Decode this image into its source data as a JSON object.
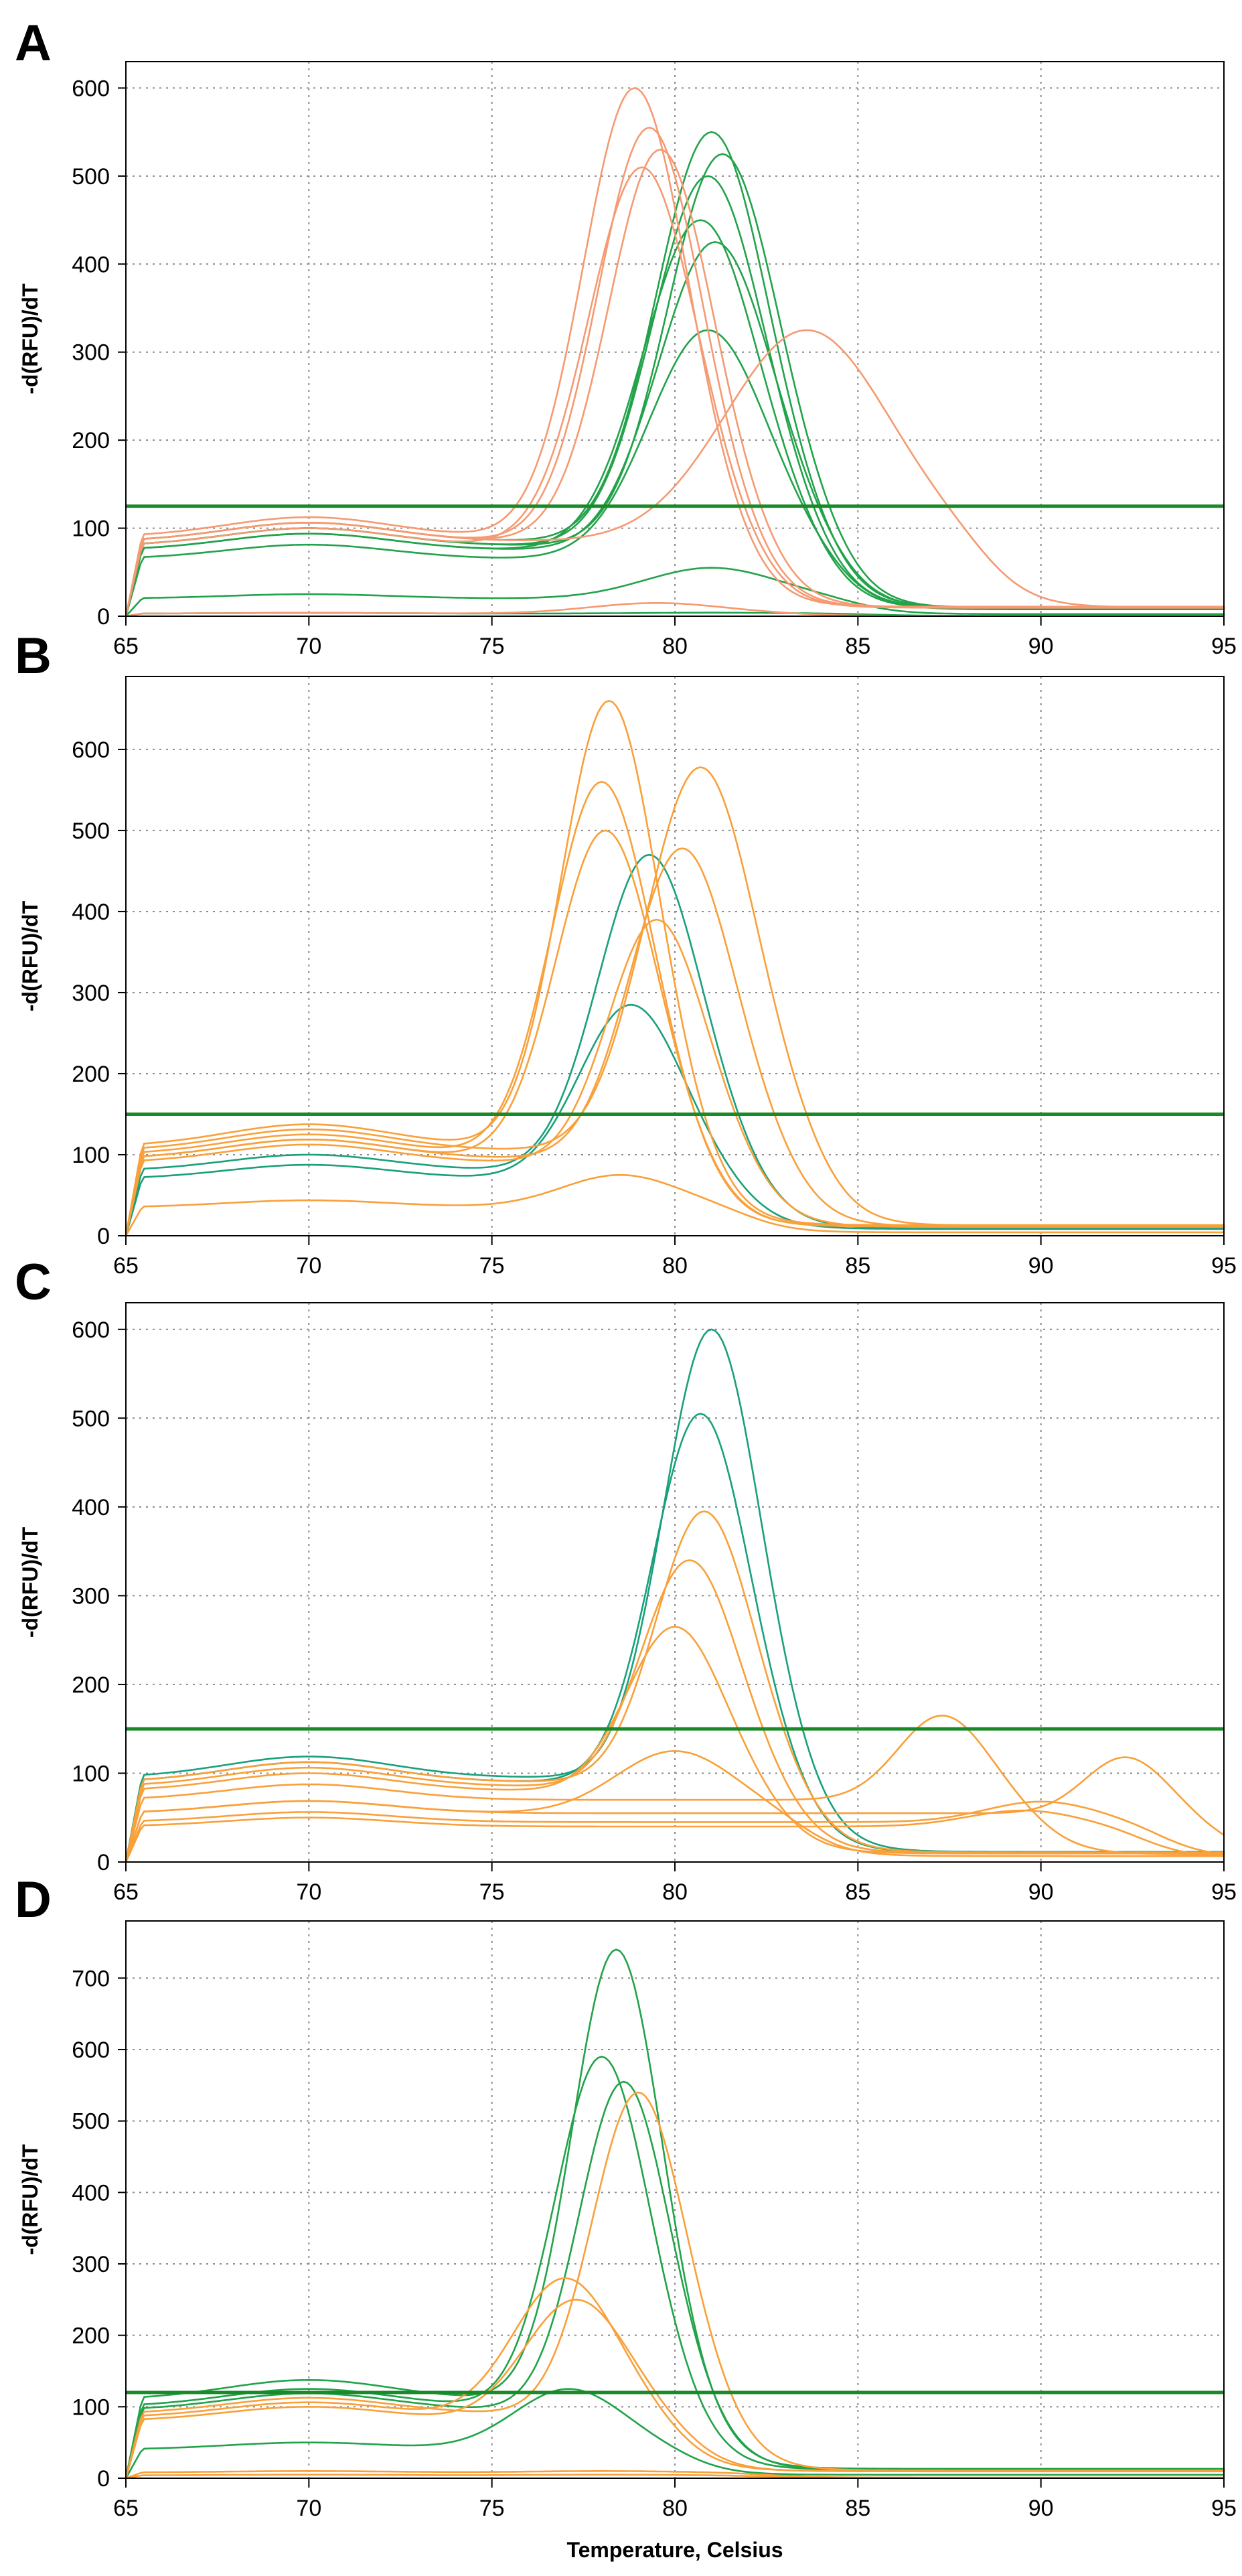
{
  "chart_data": [
    {
      "panel": "A",
      "type": "line",
      "xlabel": "",
      "ylabel": "-d(RFU)/dT",
      "xlim": [
        65,
        95
      ],
      "ylim": [
        0,
        630
      ],
      "xticks": [
        65,
        70,
        75,
        80,
        85,
        90,
        95
      ],
      "yticks": [
        0,
        100,
        200,
        300,
        400,
        500,
        600
      ],
      "threshold": 125,
      "threshold_color": "#1a8a28",
      "colors": {
        "green": "#22a34a",
        "orange": "#f59a72"
      },
      "series": [
        {
          "name": "green-1",
          "color": "green",
          "base": 85,
          "peak_x": 81.0,
          "peak_y": 550,
          "width": 1.5
        },
        {
          "name": "green-2",
          "color": "green",
          "base": 80,
          "peak_x": 81.3,
          "peak_y": 525,
          "width": 1.5
        },
        {
          "name": "green-3",
          "color": "green",
          "base": 80,
          "peak_x": 80.9,
          "peak_y": 500,
          "width": 1.5
        },
        {
          "name": "green-4",
          "color": "green",
          "base": 75,
          "peak_x": 80.7,
          "peak_y": 450,
          "width": 1.55
        },
        {
          "name": "green-5",
          "color": "green",
          "base": 75,
          "peak_x": 81.1,
          "peak_y": 425,
          "width": 1.55
        },
        {
          "name": "green-6",
          "color": "green",
          "base": 65,
          "peak_x": 80.9,
          "peak_y": 325,
          "width": 1.6
        },
        {
          "name": "green-7",
          "color": "green",
          "base": 20,
          "peak_x": 81.0,
          "peak_y": 55,
          "width": 1.8
        },
        {
          "name": "green-8",
          "color": "green",
          "base": 3,
          "peak_x": 81.0,
          "peak_y": 4,
          "width": 2.0
        },
        {
          "name": "orange-1",
          "color": "orange",
          "base": 90,
          "peak_x": 78.9,
          "peak_y": 600,
          "width": 1.4
        },
        {
          "name": "orange-2",
          "color": "orange",
          "base": 85,
          "peak_x": 79.3,
          "peak_y": 555,
          "width": 1.4
        },
        {
          "name": "orange-3",
          "color": "orange",
          "base": 85,
          "peak_x": 79.6,
          "peak_y": 530,
          "width": 1.4
        },
        {
          "name": "orange-4",
          "color": "orange",
          "base": 80,
          "peak_x": 79.1,
          "peak_y": 510,
          "width": 1.45
        },
        {
          "name": "orange-5",
          "color": "orange",
          "base": 85,
          "peak_x": 83.6,
          "peak_y": 325,
          "width": 2.2
        },
        {
          "name": "orange-6",
          "color": "orange",
          "base": 3,
          "peak_x": 79.5,
          "peak_y": 15,
          "width": 1.8
        }
      ]
    },
    {
      "panel": "B",
      "type": "line",
      "xlabel": "",
      "ylabel": "-d(RFU)/dT",
      "xlim": [
        65,
        95
      ],
      "ylim": [
        0,
        690
      ],
      "xticks": [
        65,
        70,
        75,
        80,
        85,
        90,
        95
      ],
      "yticks": [
        0,
        100,
        200,
        300,
        400,
        500,
        600
      ],
      "threshold": 150,
      "threshold_color": "#1a8a28",
      "colors": {
        "green": "#1aa07c",
        "orange": "#f9a03a"
      },
      "series": [
        {
          "name": "green-1",
          "color": "green",
          "base": 80,
          "peak_x": 79.3,
          "peak_y": 470,
          "width": 1.4
        },
        {
          "name": "green-2",
          "color": "green",
          "base": 70,
          "peak_x": 78.8,
          "peak_y": 285,
          "width": 1.4
        },
        {
          "name": "orange-1",
          "color": "orange",
          "base": 110,
          "peak_x": 78.2,
          "peak_y": 660,
          "width": 1.3
        },
        {
          "name": "orange-2",
          "color": "orange",
          "base": 105,
          "peak_x": 80.7,
          "peak_y": 578,
          "width": 1.5
        },
        {
          "name": "orange-3",
          "color": "orange",
          "base": 100,
          "peak_x": 78.0,
          "peak_y": 560,
          "width": 1.35
        },
        {
          "name": "orange-4",
          "color": "orange",
          "base": 95,
          "peak_x": 78.1,
          "peak_y": 500,
          "width": 1.35
        },
        {
          "name": "orange-5",
          "color": "orange",
          "base": 95,
          "peak_x": 80.2,
          "peak_y": 478,
          "width": 1.4
        },
        {
          "name": "orange-6",
          "color": "orange",
          "base": 90,
          "peak_x": 79.5,
          "peak_y": 390,
          "width": 1.3
        },
        {
          "name": "orange-7",
          "color": "orange",
          "base": 35,
          "peak_x": 78.5,
          "peak_y": 75,
          "width": 1.6
        }
      ]
    },
    {
      "panel": "C",
      "type": "line",
      "xlabel": "",
      "ylabel": "-d(RFU)/dT",
      "xlim": [
        65,
        95
      ],
      "ylim": [
        0,
        630
      ],
      "xticks": [
        65,
        70,
        75,
        80,
        85,
        90,
        95
      ],
      "yticks": [
        0,
        100,
        200,
        300,
        400,
        500,
        600
      ],
      "threshold": 150,
      "threshold_color": "#1a8a28",
      "colors": {
        "green": "#1aa07c",
        "orange": "#f9a03a"
      },
      "series": [
        {
          "name": "green-1",
          "color": "green",
          "base": 95,
          "peak_x": 81.0,
          "peak_y": 600,
          "width": 1.3
        },
        {
          "name": "green-2",
          "color": "green",
          "base": 90,
          "peak_x": 80.7,
          "peak_y": 505,
          "width": 1.3
        },
        {
          "name": "orange-1",
          "color": "orange",
          "base": 90,
          "peak_x": 80.8,
          "peak_y": 395,
          "width": 1.3
        },
        {
          "name": "orange-2",
          "color": "orange",
          "base": 85,
          "peak_x": 80.4,
          "peak_y": 340,
          "width": 1.3
        },
        {
          "name": "orange-3",
          "color": "orange",
          "base": 80,
          "peak_x": 80.0,
          "peak_y": 265,
          "width": 1.3
        },
        {
          "name": "orange-4",
          "color": "orange",
          "base": 70,
          "peak_x": 87.3,
          "peak_y": 165,
          "width": 1.2
        },
        {
          "name": "orange-5",
          "color": "orange",
          "base": 55,
          "peak_x": 92.3,
          "peak_y": 118,
          "width": 1.1
        },
        {
          "name": "orange-6",
          "color": "orange",
          "base": 55,
          "peak_x": 80.0,
          "peak_y": 125,
          "width": 1.6
        },
        {
          "name": "orange-7",
          "color": "orange",
          "base": 45,
          "peak_x": 90.0,
          "peak_y": 68,
          "width": 1.5
        },
        {
          "name": "orange-8",
          "color": "orange",
          "base": 40,
          "peak_x": 89.5,
          "peak_y": 58,
          "width": 1.5
        }
      ]
    },
    {
      "panel": "D",
      "type": "line",
      "xlabel": "Temperature, Celsius",
      "ylabel": "-d(RFU)/dT",
      "xlim": [
        65,
        95
      ],
      "ylim": [
        0,
        780
      ],
      "xticks": [
        65,
        70,
        75,
        80,
        85,
        90,
        95
      ],
      "yticks": [
        0,
        100,
        200,
        300,
        400,
        500,
        600,
        700
      ],
      "threshold": 120,
      "threshold_color": "#1a8a28",
      "colors": {
        "green": "#22a34a",
        "orange": "#f9a03a"
      },
      "series": [
        {
          "name": "green-1",
          "color": "green",
          "base": 110,
          "peak_x": 78.4,
          "peak_y": 740,
          "width": 1.2
        },
        {
          "name": "green-2",
          "color": "green",
          "base": 100,
          "peak_x": 78.0,
          "peak_y": 590,
          "width": 1.25
        },
        {
          "name": "green-3",
          "color": "green",
          "base": 95,
          "peak_x": 78.6,
          "peak_y": 555,
          "width": 1.2
        },
        {
          "name": "green-4",
          "color": "green",
          "base": 40,
          "peak_x": 77.1,
          "peak_y": 125,
          "width": 1.5
        },
        {
          "name": "orange-1",
          "color": "orange",
          "base": 90,
          "peak_x": 79.0,
          "peak_y": 540,
          "width": 1.25
        },
        {
          "name": "orange-2",
          "color": "orange",
          "base": 85,
          "peak_x": 77.0,
          "peak_y": 280,
          "width": 1.4
        },
        {
          "name": "orange-3",
          "color": "orange",
          "base": 80,
          "peak_x": 77.3,
          "peak_y": 250,
          "width": 1.4
        },
        {
          "name": "orange-4",
          "color": "orange",
          "base": 8,
          "peak_x": 78.0,
          "peak_y": 10,
          "width": 2.0
        },
        {
          "name": "orange-5",
          "color": "orange",
          "base": 4,
          "peak_x": 78.0,
          "peak_y": 5,
          "width": 2.0
        }
      ]
    }
  ]
}
